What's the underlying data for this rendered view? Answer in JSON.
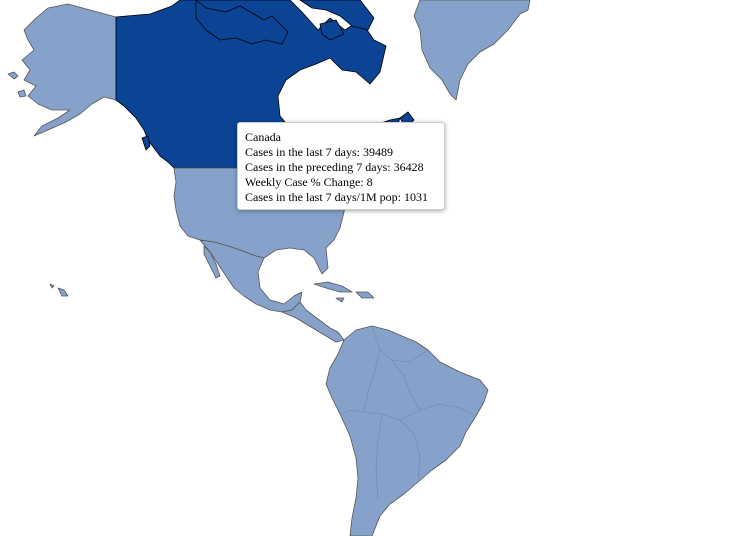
{
  "map": {
    "colors": {
      "highlighted": "#0b4495",
      "default": "#86a2cb",
      "border": "#555555",
      "background": "#ffffff"
    },
    "selected_country": "Canada"
  },
  "tooltip": {
    "country": "Canada",
    "line_cases_7d": "Cases in the last 7 days: 39489",
    "line_cases_prev_7d": "Cases in the preceding 7 days: 36428",
    "line_weekly_change": "Weekly Case % Change: 8",
    "line_cases_per_1m": "Cases in the last 7 days/1M pop: 1031"
  }
}
